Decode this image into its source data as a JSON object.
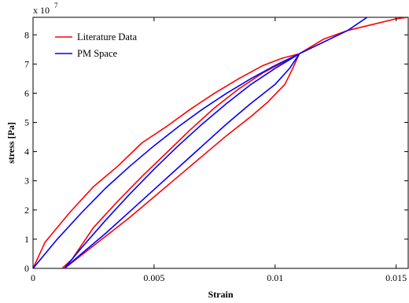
{
  "chart_data": {
    "type": "line",
    "title": "",
    "xlabel": "Strain",
    "ylabel": "stress [Pa]",
    "xlim": [
      0,
      0.0155
    ],
    "ylim": [
      0,
      8.6
    ],
    "y_multiplier_label": {
      "base": "x 10",
      "exponent": "7"
    },
    "grid": false,
    "legend_position": "top-left",
    "x_ticks": [
      0,
      0.005,
      0.01,
      0.015
    ],
    "x_tick_labels": [
      "0",
      "0.005",
      "0.01",
      "0.015"
    ],
    "y_ticks": [
      0,
      1,
      2,
      3,
      4,
      5,
      6,
      7,
      8
    ],
    "y_tick_labels": [
      "0",
      "1",
      "2",
      "3",
      "4",
      "5",
      "6",
      "7",
      "8"
    ],
    "series": [
      {
        "name": "Literature Data",
        "color": "#ff0000",
        "segments": [
          [
            [
              0,
              0
            ],
            [
              0.0005,
              0.9
            ],
            [
              0.0015,
              1.9
            ],
            [
              0.0025,
              2.8
            ],
            [
              0.0035,
              3.5
            ],
            [
              0.0045,
              4.3
            ],
            [
              0.0055,
              4.85
            ],
            [
              0.0065,
              5.45
            ],
            [
              0.0075,
              6.0
            ],
            [
              0.0085,
              6.5
            ],
            [
              0.0095,
              6.95
            ],
            [
              0.0103,
              7.2
            ],
            [
              0.011,
              7.35
            ]
          ],
          [
            [
              0.0012,
              0
            ],
            [
              0.0016,
              0.3
            ],
            [
              0.0025,
              1.4
            ],
            [
              0.0035,
              2.3
            ],
            [
              0.0045,
              3.15
            ],
            [
              0.0055,
              3.95
            ],
            [
              0.0065,
              4.75
            ],
            [
              0.0075,
              5.5
            ],
            [
              0.0085,
              6.15
            ],
            [
              0.0095,
              6.7
            ],
            [
              0.0103,
              7.05
            ],
            [
              0.011,
              7.35
            ]
          ],
          [
            [
              0.0013,
              0
            ],
            [
              0.002,
              0.45
            ],
            [
              0.003,
              1.1
            ],
            [
              0.004,
              1.75
            ],
            [
              0.005,
              2.45
            ],
            [
              0.006,
              3.15
            ],
            [
              0.007,
              3.85
            ],
            [
              0.008,
              4.55
            ],
            [
              0.009,
              5.2
            ],
            [
              0.0097,
              5.7
            ],
            [
              0.0104,
              6.3
            ],
            [
              0.0107,
              6.8
            ],
            [
              0.011,
              7.35
            ],
            [
              0.0115,
              7.6
            ],
            [
              0.012,
              7.85
            ],
            [
              0.013,
              8.15
            ],
            [
              0.014,
              8.35
            ],
            [
              0.015,
              8.55
            ],
            [
              0.0155,
              8.6
            ]
          ]
        ]
      },
      {
        "name": "PM Space",
        "color": "#0000ff",
        "segments": [
          [
            [
              0,
              0
            ],
            [
              0.001,
              1.0
            ],
            [
              0.002,
              1.9
            ],
            [
              0.003,
              2.75
            ],
            [
              0.004,
              3.5
            ],
            [
              0.005,
              4.2
            ],
            [
              0.006,
              4.85
            ],
            [
              0.007,
              5.45
            ],
            [
              0.008,
              6.0
            ],
            [
              0.009,
              6.5
            ],
            [
              0.01,
              6.95
            ],
            [
              0.011,
              7.35
            ],
            [
              0.012,
              7.75
            ],
            [
              0.013,
              8.15
            ],
            [
              0.0138,
              8.6
            ]
          ],
          [
            [
              0.0013,
              0
            ],
            [
              0.002,
              0.7
            ],
            [
              0.003,
              1.65
            ],
            [
              0.004,
              2.55
            ],
            [
              0.005,
              3.4
            ],
            [
              0.006,
              4.2
            ],
            [
              0.007,
              4.95
            ],
            [
              0.008,
              5.65
            ],
            [
              0.009,
              6.3
            ],
            [
              0.01,
              6.85
            ],
            [
              0.011,
              7.35
            ]
          ],
          [
            [
              0.0013,
              0
            ],
            [
              0.002,
              0.5
            ],
            [
              0.003,
              1.2
            ],
            [
              0.004,
              1.95
            ],
            [
              0.005,
              2.7
            ],
            [
              0.006,
              3.45
            ],
            [
              0.007,
              4.2
            ],
            [
              0.008,
              4.95
            ],
            [
              0.009,
              5.65
            ],
            [
              0.01,
              6.3
            ],
            [
              0.0106,
              6.85
            ],
            [
              0.011,
              7.35
            ]
          ]
        ]
      }
    ]
  }
}
